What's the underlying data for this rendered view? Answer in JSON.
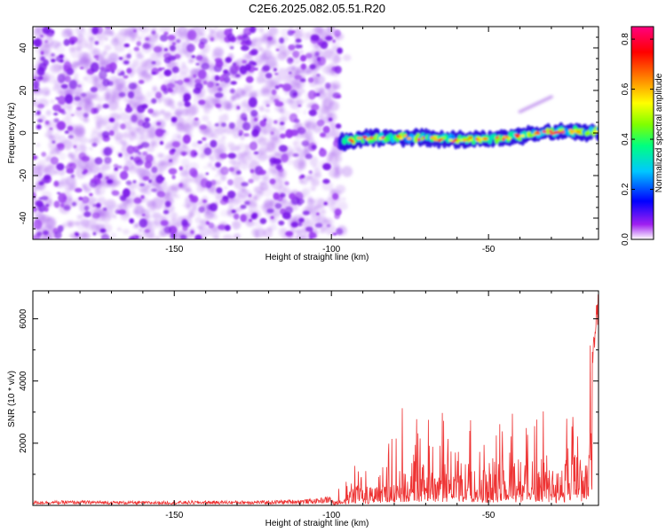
{
  "title": "C2E6.2025.082.05.51.R20",
  "chart_data": [
    {
      "type": "heatmap",
      "xlabel": "Height of straight line (km)",
      "ylabel": "Frequency (Hz)",
      "xlim": [
        -195,
        -15
      ],
      "ylim": [
        -50,
        50
      ],
      "xticks": [
        -150,
        -100,
        -50
      ],
      "yticks": [
        -40,
        -20,
        0,
        20,
        40
      ],
      "colorbar": {
        "label": "Normalized spectral amplitude",
        "range": [
          0,
          0.85
        ],
        "ticks": [
          0.0,
          0.2,
          0.4,
          0.6,
          0.8
        ],
        "colormap": [
          "#ffffff",
          "#a020f0",
          "#0000ff",
          "#00c8ff",
          "#00ff80",
          "#80ff00",
          "#ffff00",
          "#ff8000",
          "#ff0000",
          "#ff0080"
        ]
      },
      "features": [
        {
          "name": "background noise",
          "x_range": [
            -195,
            -97
          ],
          "freq_range": [
            -50,
            50
          ],
          "amplitude": 0.05
        },
        {
          "name": "ridge",
          "x_range": [
            -97,
            -15
          ],
          "freq_start": -4,
          "freq_end": 0,
          "amplitude_peak": 0.85
        },
        {
          "name": "faint trace",
          "x_range": [
            -40,
            -30
          ],
          "freq_start": 10,
          "freq_end": 17,
          "amplitude": 0.08
        }
      ]
    },
    {
      "type": "line",
      "xlabel": "Height of straight line (km)",
      "ylabel": "SNR (10 * v/v)",
      "xlim": [
        -195,
        -15
      ],
      "ylim": [
        0,
        6900
      ],
      "xticks": [
        -150,
        -100,
        -50
      ],
      "yticks": [
        2000,
        4000,
        6000
      ],
      "series": [
        {
          "color": "#ee3333",
          "x": [
            -195,
            -180,
            -160,
            -140,
            -120,
            -105,
            -100,
            -97,
            -94,
            -91,
            -88,
            -85,
            -82,
            -78,
            -75,
            -72,
            -70,
            -68,
            -66,
            -63,
            -60,
            -57,
            -55,
            -52,
            -49,
            -46,
            -43,
            -40,
            -37,
            -35,
            -32,
            -29,
            -26,
            -23,
            -21,
            -19,
            -17.5,
            -16,
            -15.2
          ],
          "values": [
            120,
            130,
            110,
            125,
            130,
            180,
            260,
            600,
            800,
            1300,
            1000,
            1250,
            1900,
            2150,
            2200,
            1800,
            2500,
            2600,
            2000,
            2100,
            1700,
            2300,
            2100,
            1800,
            1500,
            2300,
            2200,
            1900,
            2100,
            2200,
            2000,
            1800,
            1700,
            2600,
            2300,
            2300,
            4200,
            6000,
            6800
          ]
        }
      ]
    }
  ]
}
